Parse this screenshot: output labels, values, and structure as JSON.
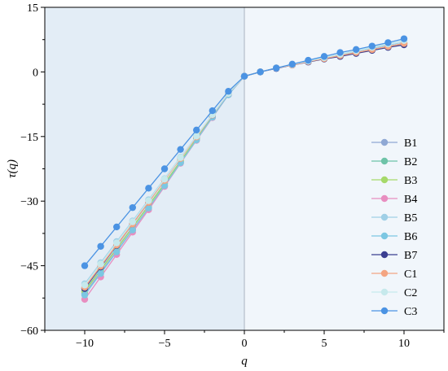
{
  "chart_data": {
    "type": "line",
    "title": "",
    "xlabel": "q",
    "ylabel": "τ(q)",
    "xlim": [
      -12.5,
      12.5
    ],
    "ylim": [
      -60,
      15
    ],
    "xticks": [
      -10,
      -5,
      0,
      5,
      10
    ],
    "yticks": [
      -60,
      -45,
      -30,
      -15,
      0,
      15
    ],
    "xtick_labels": [
      "−10",
      "−5",
      "0",
      "5",
      "10"
    ],
    "ytick_labels": [
      "−60",
      "−45",
      "−30",
      "−15",
      "0",
      "15"
    ],
    "grid": false,
    "legend_position": "right",
    "background_regions": [
      {
        "x_range": [
          -12.5,
          0
        ],
        "color": "#e3edf6"
      },
      {
        "x_range": [
          0,
          12.5
        ],
        "color": "#f1f6fb"
      }
    ],
    "x": [
      -10,
      -9,
      -8,
      -7,
      -6,
      -5,
      -4,
      -3,
      -2,
      -1,
      0,
      1,
      2,
      3,
      4,
      5,
      6,
      7,
      8,
      9,
      10
    ],
    "series": [
      {
        "name": "B1",
        "color": "#8fa8d4",
        "values": [
          -51.5,
          -46.5,
          -41.6,
          -36.6,
          -31.6,
          -26.4,
          -21.0,
          -15.8,
          -10.5,
          -5.3,
          -1.0,
          0.0,
          0.9,
          1.6,
          2.4,
          3.1,
          3.8,
          4.5,
          5.2,
          5.9,
          6.6
        ]
      },
      {
        "name": "B2",
        "color": "#6ec3a8",
        "values": [
          -50.8,
          -45.9,
          -41.0,
          -36.0,
          -31.0,
          -25.9,
          -20.7,
          -15.5,
          -10.3,
          -5.2,
          -1.0,
          0.0,
          0.9,
          1.6,
          2.4,
          3.1,
          3.8,
          4.5,
          5.2,
          5.9,
          6.6
        ]
      },
      {
        "name": "B3",
        "color": "#a6d96a",
        "values": [
          -51.0,
          -46.0,
          -41.1,
          -36.1,
          -31.1,
          -26.0,
          -20.8,
          -15.6,
          -10.4,
          -5.2,
          -1.0,
          0.0,
          0.9,
          1.6,
          2.4,
          3.1,
          3.8,
          4.5,
          5.2,
          5.9,
          6.6
        ]
      },
      {
        "name": "B4",
        "color": "#e88ec0",
        "values": [
          -52.8,
          -47.6,
          -42.4,
          -37.2,
          -32.0,
          -26.6,
          -21.2,
          -15.9,
          -10.6,
          -5.3,
          -1.0,
          0.0,
          0.9,
          1.6,
          2.4,
          3.1,
          3.8,
          4.5,
          5.2,
          5.9,
          6.6
        ]
      },
      {
        "name": "B5",
        "color": "#9fcfe6",
        "values": [
          -49.2,
          -44.3,
          -39.4,
          -34.6,
          -29.7,
          -24.8,
          -19.8,
          -14.9,
          -9.9,
          -5.0,
          -1.0,
          0.0,
          0.9,
          1.7,
          2.5,
          3.3,
          4.0,
          4.8,
          5.5,
          6.2,
          6.9
        ]
      },
      {
        "name": "B6",
        "color": "#7cc7e2",
        "values": [
          -51.8,
          -46.8,
          -41.8,
          -36.7,
          -31.6,
          -26.4,
          -21.1,
          -15.8,
          -10.5,
          -5.3,
          -1.0,
          0.0,
          0.9,
          1.7,
          2.5,
          3.3,
          4.1,
          4.9,
          5.7,
          6.5,
          7.3
        ]
      },
      {
        "name": "B7",
        "color": "#3b3f91",
        "values": [
          -50.3,
          -45.3,
          -40.3,
          -35.3,
          -30.3,
          -25.1,
          -20.0,
          -15.0,
          -10.0,
          -5.0,
          -1.0,
          0.0,
          0.8,
          1.6,
          2.3,
          3.0,
          3.6,
          4.3,
          5.0,
          5.7,
          6.3
        ]
      },
      {
        "name": "C1",
        "color": "#f4a582",
        "values": [
          -50.0,
          -45.1,
          -40.2,
          -35.3,
          -30.3,
          -25.2,
          -20.1,
          -15.1,
          -10.0,
          -5.0,
          -1.0,
          0.0,
          0.9,
          1.6,
          2.4,
          3.1,
          3.8,
          4.5,
          5.2,
          5.9,
          6.6
        ]
      },
      {
        "name": "C2",
        "color": "#c6e9ec",
        "values": [
          -49.5,
          -44.6,
          -39.7,
          -34.8,
          -29.9,
          -24.9,
          -19.9,
          -14.9,
          -9.9,
          -5.0,
          -1.0,
          0.0,
          0.9,
          1.7,
          2.5,
          3.3,
          4.1,
          4.9,
          5.7,
          6.5,
          7.3
        ]
      },
      {
        "name": "C3",
        "color": "#4b93e3",
        "values": [
          -45.0,
          -40.5,
          -36.0,
          -31.5,
          -27.0,
          -22.5,
          -18.0,
          -13.5,
          -9.0,
          -4.5,
          -1.0,
          0.0,
          0.9,
          1.8,
          2.7,
          3.6,
          4.5,
          5.2,
          6.0,
          6.8,
          7.7
        ]
      }
    ]
  }
}
